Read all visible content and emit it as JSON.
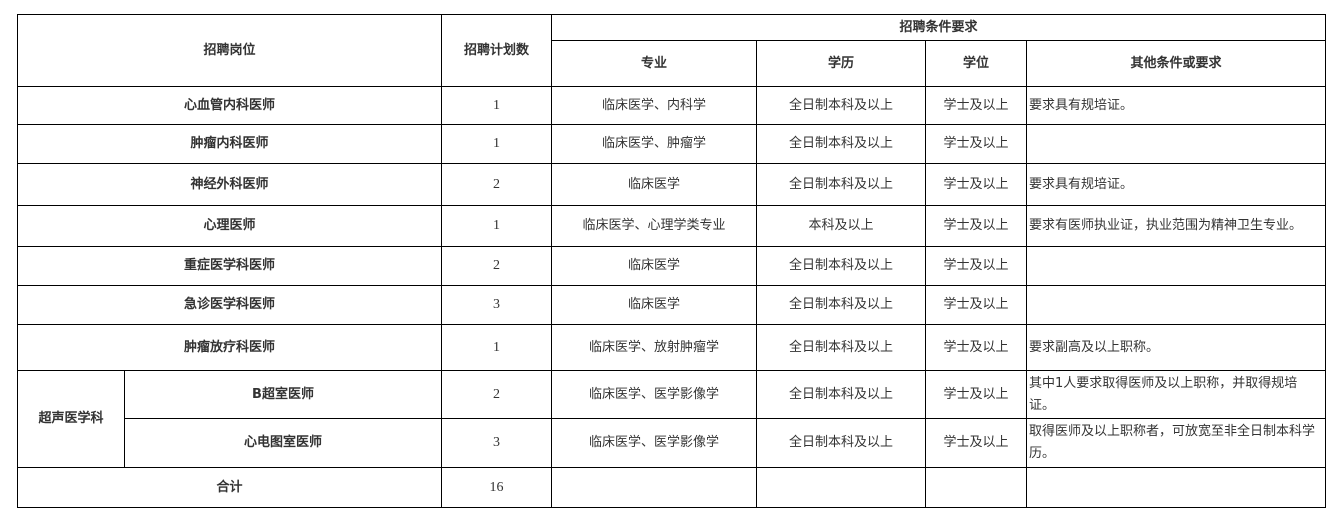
{
  "header": {
    "position": "招聘岗位",
    "plan_count": "招聘计划数",
    "requirements": "招聘条件要求",
    "major": "专业",
    "education": "学历",
    "degree": "学位",
    "other": "其他条件或要求"
  },
  "rows": [
    {
      "position": "心血管内科医师",
      "count": "1",
      "major": "临床医学、内科学",
      "education": "全日制本科及以上",
      "degree": "学士及以上",
      "other": "要求具有规培证。"
    },
    {
      "position": "肿瘤内科医师",
      "count": "1",
      "major": "临床医学、肿瘤学",
      "education": "全日制本科及以上",
      "degree": "学士及以上",
      "other": ""
    },
    {
      "position": "神经外科医师",
      "count": "2",
      "major": "临床医学",
      "education": "全日制本科及以上",
      "degree": "学士及以上",
      "other": "要求具有规培证。"
    },
    {
      "position": "心理医师",
      "count": "1",
      "major": "临床医学、心理学类专业",
      "education": "本科及以上",
      "degree": "学士及以上",
      "other": "要求有医师执业证，执业范围为精神卫生专业。"
    },
    {
      "position": "重症医学科医师",
      "count": "2",
      "major": "临床医学",
      "education": "全日制本科及以上",
      "degree": "学士及以上",
      "other": ""
    },
    {
      "position": "急诊医学科医师",
      "count": "3",
      "major": "临床医学",
      "education": "全日制本科及以上",
      "degree": "学士及以上",
      "other": ""
    },
    {
      "position": "肿瘤放疗科医师",
      "count": "1",
      "major": "临床医学、放射肿瘤学",
      "education": "全日制本科及以上",
      "degree": "学士及以上",
      "other": "要求副高及以上职称。"
    }
  ],
  "group": {
    "name": "超声医学科",
    "rows": [
      {
        "position": "B超室医师",
        "count": "2",
        "major": "临床医学、医学影像学",
        "education": "全日制本科及以上",
        "degree": "学士及以上",
        "other": "其中1人要求取得医师及以上职称，并取得规培证。"
      },
      {
        "position": "心电图室医师",
        "count": "3",
        "major": "临床医学、医学影像学",
        "education": "全日制本科及以上",
        "degree": "学士及以上",
        "other": "取得医师及以上职称者，可放宽至非全日制本科学历。"
      }
    ]
  },
  "total": {
    "label": "合计",
    "count": "16"
  }
}
